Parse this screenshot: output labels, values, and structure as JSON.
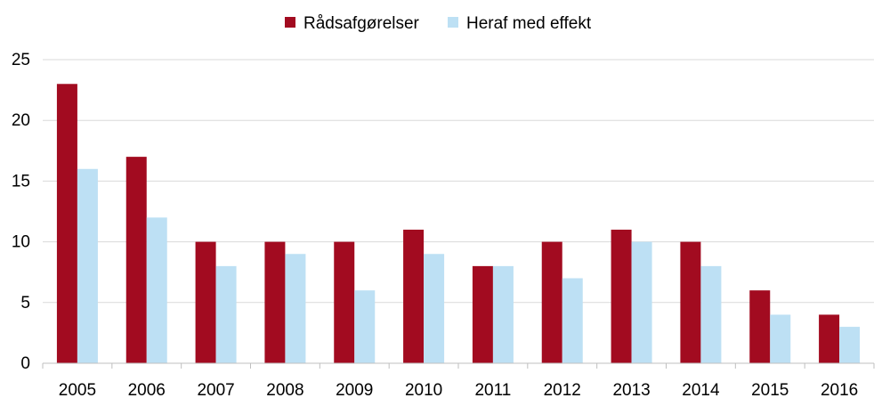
{
  "chart_data": {
    "type": "bar",
    "categories": [
      "2005",
      "2006",
      "2007",
      "2008",
      "2009",
      "2010",
      "2011",
      "2012",
      "2013",
      "2014",
      "2015",
      "2016"
    ],
    "series": [
      {
        "name": "Rådsafgørelser",
        "color": "#A20B20",
        "values": [
          23,
          17,
          10,
          10,
          10,
          11,
          8,
          10,
          11,
          10,
          6,
          4
        ]
      },
      {
        "name": "Heraf med effekt",
        "color": "#BDE0F4",
        "values": [
          16,
          12,
          8,
          9,
          6,
          9,
          8,
          7,
          10,
          8,
          4,
          3
        ]
      }
    ],
    "ylim": [
      0,
      25
    ],
    "yticks": [
      0,
      5,
      10,
      15,
      20,
      25
    ],
    "grid": true,
    "legend_position": "top-center",
    "gridline_color": "#D9D9D9",
    "axis_color": "#BFBFBF"
  }
}
